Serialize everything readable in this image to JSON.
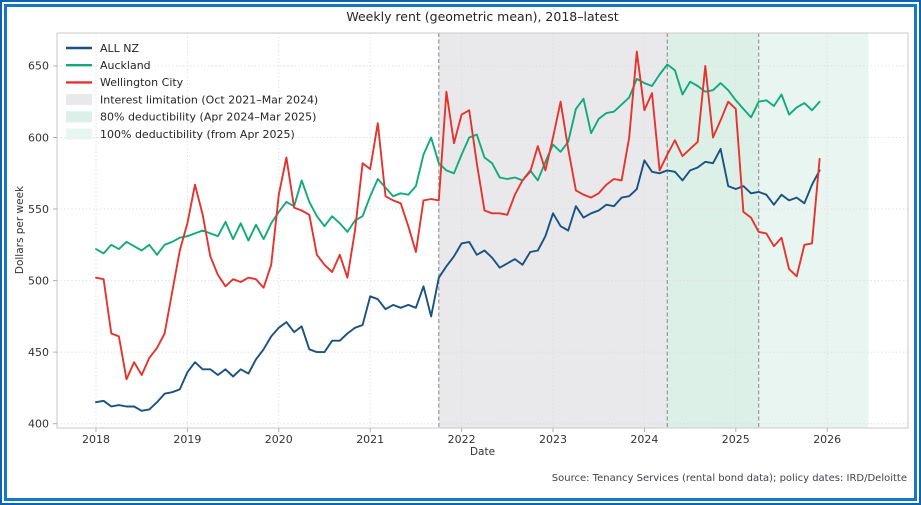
{
  "title": "Weekly rent (geometric mean), 2018–latest",
  "xlabel": "Date",
  "ylabel": "Dollars per week",
  "source_note": "Source: Tenancy Services (rental bond data); policy dates: IRD/Deloitte",
  "chart_data": {
    "type": "line",
    "title": "Weekly rent (geometric mean), 2018–latest",
    "xlabel": "Date",
    "ylabel": "Dollars per week",
    "x_start_year": 2018,
    "x_frequency": "monthly",
    "xlim": [
      2017.573,
      2026.884
    ],
    "ylim": [
      397,
      673
    ],
    "xticks": [
      2018,
      2019,
      2020,
      2021,
      2022,
      2023,
      2024,
      2025,
      2026
    ],
    "yticks": [
      400,
      450,
      500,
      550,
      600,
      650
    ],
    "grid": true,
    "legend_position": "upper-left",
    "series": [
      {
        "name": "ALL NZ",
        "color": "#1a5280",
        "values": [
          415,
          416,
          412,
          413,
          412,
          412,
          409,
          410,
          415,
          421,
          422,
          424,
          436,
          443,
          438,
          438,
          434,
          438,
          433,
          438,
          435,
          445,
          452,
          461,
          467,
          471,
          464,
          468,
          452,
          450,
          450,
          458,
          458,
          463,
          467,
          469,
          489,
          487,
          480,
          483,
          481,
          483,
          481,
          496,
          475,
          502,
          510,
          517,
          526,
          527,
          518,
          521,
          516,
          509,
          512,
          515,
          511,
          520,
          521,
          531,
          547,
          538,
          535,
          552,
          544,
          547,
          549,
          553,
          552,
          558,
          559,
          564,
          584,
          576,
          575,
          577,
          576,
          570,
          577,
          579,
          583,
          582,
          592,
          566,
          564,
          566,
          561,
          562,
          560,
          553,
          560,
          556,
          558,
          554,
          567,
          577
        ]
      },
      {
        "name": "Auckland",
        "color": "#12aa7c",
        "values": [
          522,
          519,
          525,
          522,
          527,
          524,
          521,
          525,
          518,
          525,
          527,
          530,
          531,
          533,
          535,
          533,
          531,
          541,
          529,
          540,
          528,
          539,
          529,
          540,
          548,
          555,
          552,
          570,
          555,
          545,
          538,
          545,
          540,
          534,
          542,
          545,
          559,
          571,
          565,
          559,
          561,
          560,
          566,
          588,
          600,
          582,
          577,
          575,
          588,
          600,
          602,
          586,
          582,
          572,
          571,
          572,
          570,
          577,
          570,
          583,
          595,
          590,
          597,
          620,
          627,
          603,
          613,
          617,
          618,
          623,
          628,
          641,
          638,
          636,
          644,
          651,
          647,
          630,
          639,
          636,
          632,
          633,
          638,
          633,
          626,
          620,
          614,
          625,
          626,
          622,
          630,
          616,
          621,
          624,
          619,
          625
        ]
      },
      {
        "name": "Wellington City",
        "color": "#e5332e",
        "values": [
          502,
          501,
          463,
          461,
          431,
          443,
          434,
          446,
          453,
          463,
          492,
          521,
          540,
          567,
          546,
          517,
          504,
          496,
          501,
          499,
          502,
          501,
          495,
          511,
          560,
          586,
          551,
          549,
          546,
          518,
          511,
          506,
          518,
          502,
          535,
          582,
          578,
          610,
          559,
          556,
          554,
          538,
          520,
          556,
          557,
          556,
          632,
          596,
          616,
          619,
          582,
          549,
          547,
          547,
          546,
          560,
          570,
          576,
          594,
          577,
          600,
          625,
          592,
          563,
          560,
          558,
          561,
          567,
          571,
          570,
          600,
          660,
          619,
          631,
          577,
          588,
          598,
          587,
          592,
          597,
          650,
          600,
          612,
          625,
          620,
          548,
          544,
          534,
          533,
          524,
          530,
          508,
          503,
          525,
          526,
          585
        ]
      }
    ],
    "bands": [
      {
        "label": "Interest limitation (Oct 2021–Mar 2024)",
        "from": 2021.75,
        "to": 2024.25,
        "color": "#e9e9ec"
      },
      {
        "label": "80% deductibility (Apr 2024–Mar 2025)",
        "from": 2024.25,
        "to": 2025.25,
        "color": "#ddf0e8"
      },
      {
        "label": "100% deductibility (from Apr 2025)",
        "from": 2025.25,
        "to": 2026.45,
        "color": "#e9f5f0"
      }
    ],
    "policy_lines": [
      2021.75,
      2024.25,
      2025.25
    ],
    "policy_line_color": "#8f8f8f",
    "grid_color": "#dcdcdc",
    "spine_color": "#c9c9c9",
    "tick_label_color": "#333333"
  }
}
